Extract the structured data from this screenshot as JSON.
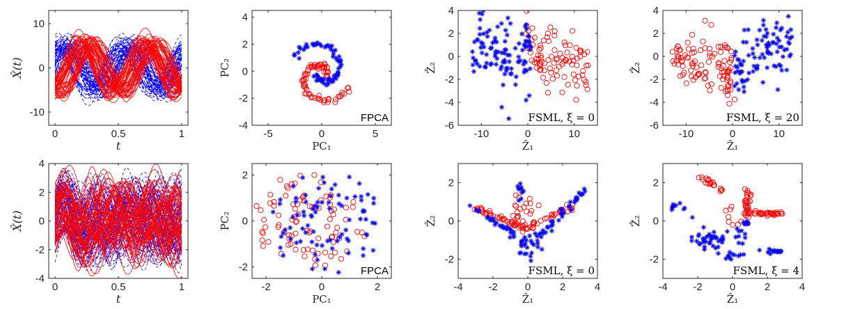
{
  "colors": {
    "class_a": "#0000ff",
    "class_b": "#ff0000",
    "axis": "#262626"
  },
  "chart_data": [
    {
      "type": "line",
      "row": 0,
      "col": 0,
      "xlabel": "t",
      "ylabel": "X̂(t)",
      "xlim": [
        -0.05,
        1.05
      ],
      "ylim": [
        -13,
        13
      ],
      "xticks": [
        0,
        0.5,
        1
      ],
      "xticklabels": [
        "0",
        "0.5",
        "1"
      ],
      "yticks": [
        -10,
        0,
        10
      ],
      "yticklabels": [
        "-10",
        "0",
        "10"
      ],
      "series": [
        {
          "style": "dashed",
          "color": "blue",
          "amp": 5.5,
          "phase": 0.0,
          "count": 60,
          "noise": 4
        },
        {
          "style": "solid",
          "color": "red",
          "amp": 5.5,
          "phase": 0.35,
          "count": 55,
          "noise": 4
        }
      ]
    },
    {
      "type": "scatter",
      "row": 0,
      "col": 1,
      "xlabel": "PC₁",
      "ylabel": "PC₂",
      "annotation": "FPCA",
      "xlim": [
        -6.5,
        6.5
      ],
      "ylim": [
        -4,
        4.5
      ],
      "xticks": [
        -5,
        0,
        5
      ],
      "xticklabels": [
        "-5",
        "0",
        "5"
      ],
      "yticks": [
        -4,
        -2,
        0,
        2,
        4
      ],
      "yticklabels": [
        "-4",
        "-2",
        "0",
        "2",
        "4"
      ],
      "generator": "spiral"
    },
    {
      "type": "scatter",
      "row": 0,
      "col": 2,
      "xlabel": "Ẑ₁",
      "ylabel": "Ẑ₂",
      "annotation": "FSML, ξ = 0",
      "xlim": [
        -15,
        15
      ],
      "ylim": [
        -6,
        4
      ],
      "xticks": [
        -10,
        0,
        10
      ],
      "xticklabels": [
        "-10",
        "0",
        "10"
      ],
      "yticks": [
        -6,
        -4,
        -2,
        0,
        2,
        4
      ],
      "yticklabels": [
        "-6",
        "-4",
        "-2",
        "0",
        "2",
        "4"
      ],
      "generator": "overlap_wide"
    },
    {
      "type": "scatter",
      "row": 0,
      "col": 3,
      "xlabel": "Ẑ₁",
      "ylabel": "Ẑ₂",
      "annotation": "FSML, ξ = 20",
      "xlim": [
        -15,
        15
      ],
      "ylim": [
        -6,
        4
      ],
      "xticks": [
        -10,
        0,
        10
      ],
      "xticklabels": [
        "-10",
        "0",
        "10"
      ],
      "yticks": [
        -6,
        -4,
        -2,
        0,
        2,
        4
      ],
      "yticklabels": [
        "-6",
        "-4",
        "-2",
        "0",
        "2",
        "4"
      ],
      "generator": "separated_wide"
    },
    {
      "type": "line",
      "row": 1,
      "col": 0,
      "xlabel": "t",
      "ylabel": "X̂(t)",
      "xlim": [
        -0.05,
        1.05
      ],
      "ylim": [
        -4,
        4
      ],
      "xticks": [
        0,
        0.5,
        1
      ],
      "xticklabels": [
        "0",
        "0.5",
        "1"
      ],
      "yticks": [
        -4,
        -2,
        0,
        2,
        4
      ],
      "yticklabels": [
        "-4",
        "-2",
        "0",
        "2",
        "4"
      ],
      "series": [
        {
          "style": "dashed",
          "color": "blue",
          "amp": 2.6,
          "phase": 0.0,
          "count": 90,
          "noise": 0
        },
        {
          "style": "solid",
          "color": "red",
          "amp": 2.6,
          "phase": 0.0,
          "count": 70,
          "noise": 0
        }
      ]
    },
    {
      "type": "scatter",
      "row": 1,
      "col": 1,
      "xlabel": "PC₁",
      "ylabel": "PC₂",
      "annotation": "FPCA",
      "xlim": [
        -2.5,
        2.5
      ],
      "ylim": [
        -2.5,
        2.5
      ],
      "xticks": [
        -2,
        0,
        2
      ],
      "xticklabels": [
        "-2",
        "0",
        "2"
      ],
      "yticks": [
        -2,
        0,
        2
      ],
      "yticklabels": [
        "-2",
        "0",
        "2"
      ],
      "generator": "ring_mixed"
    },
    {
      "type": "scatter",
      "row": 1,
      "col": 2,
      "xlabel": "Ẑ₁",
      "ylabel": "Ẑ₂",
      "annotation": "FSML, ξ = 0",
      "xlim": [
        -4,
        4
      ],
      "ylim": [
        -3,
        3
      ],
      "xticks": [
        -4,
        -2,
        0,
        2,
        4
      ],
      "xticklabels": [
        "-4",
        "-2",
        "0",
        "2",
        "4"
      ],
      "yticks": [
        -2,
        0,
        2
      ],
      "yticklabels": [
        "-2",
        "0",
        "2"
      ],
      "generator": "arms_mixed"
    },
    {
      "type": "scatter",
      "row": 1,
      "col": 3,
      "xlabel": "Ẑ₁",
      "ylabel": "Ẑ₂",
      "annotation": "FSML, ξ = 4",
      "xlim": [
        -4,
        4
      ],
      "ylim": [
        -3,
        3
      ],
      "xticks": [
        -4,
        -2,
        0,
        2,
        4
      ],
      "xticklabels": [
        "-4",
        "-2",
        "0",
        "2",
        "4"
      ],
      "yticks": [
        -2,
        0,
        2
      ],
      "yticklabels": [
        "-2",
        "0",
        "2"
      ],
      "generator": "arms_separated"
    }
  ]
}
